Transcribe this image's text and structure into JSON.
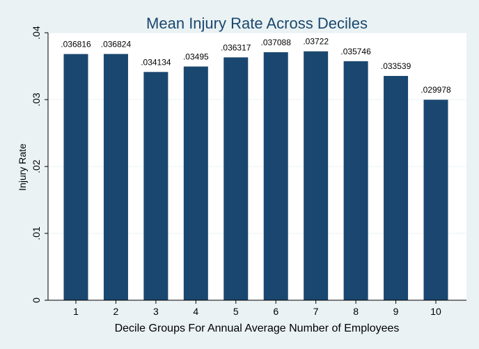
{
  "chart_data": {
    "type": "bar",
    "title": "Mean Injury Rate Across Deciles",
    "xlabel": "Decile Groups For Annual Average Number of Employees",
    "ylabel": "Injury Rate",
    "categories": [
      "1",
      "2",
      "3",
      "4",
      "5",
      "6",
      "7",
      "8",
      "9",
      "10"
    ],
    "values": [
      0.036816,
      0.036824,
      0.034134,
      0.03495,
      0.036317,
      0.037088,
      0.03722,
      0.035746,
      0.033539,
      0.029978
    ],
    "value_labels": [
      ".036816",
      ".036824",
      ".034134",
      ".03495",
      ".036317",
      ".037088",
      ".03722",
      ".035746",
      ".033539",
      ".029978"
    ],
    "yticks": [
      0,
      0.01,
      0.02,
      0.03,
      0.04
    ],
    "ytick_labels": [
      "0",
      ".01",
      ".02",
      ".03",
      ".04"
    ],
    "ylim": [
      0,
      0.04
    ],
    "grid": true,
    "colors": {
      "bar": "#1a476f",
      "background": "#eaf2f3",
      "plot_background": "#ffffff",
      "grid": "#eaf2f3",
      "title": "#1a476f"
    }
  }
}
